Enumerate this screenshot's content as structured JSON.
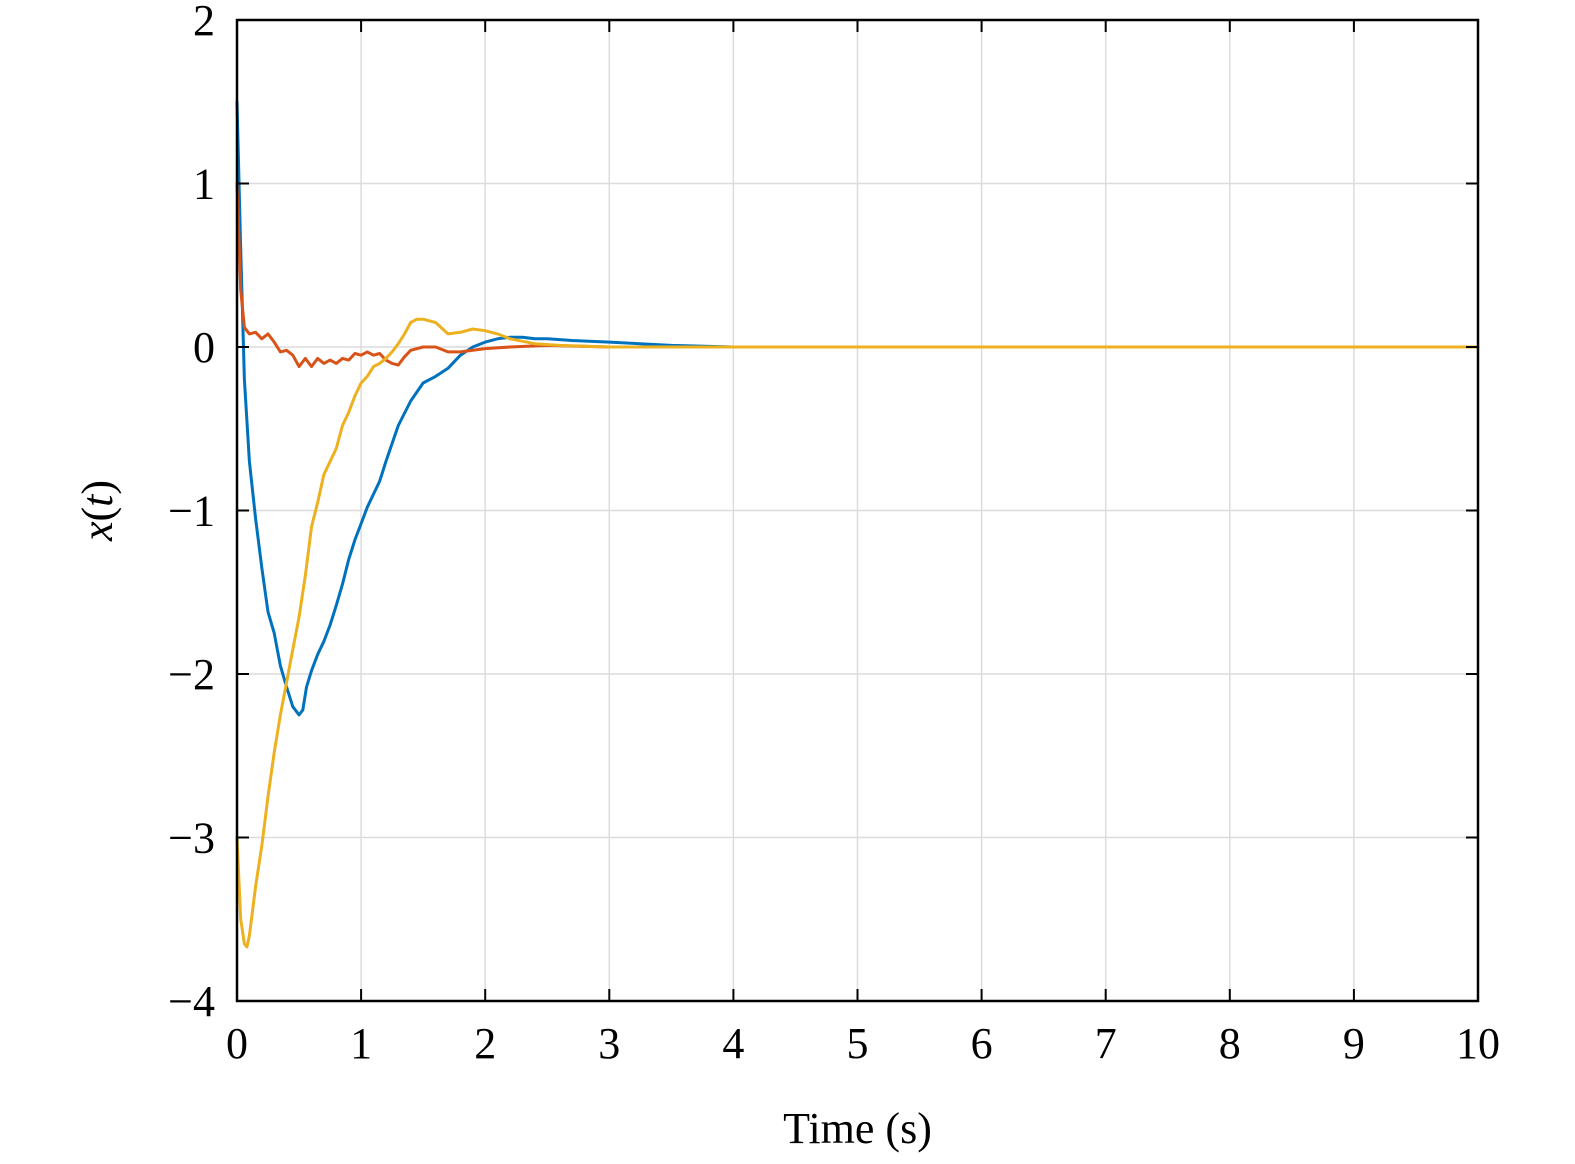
{
  "chart_data": {
    "type": "line",
    "title": "",
    "xlabel": "Time (s)",
    "ylabel_italic_var": "x",
    "ylabel_paren_open": "(",
    "ylabel_italic_arg": "t",
    "ylabel_paren_close": ")",
    "xlim": [
      0,
      10
    ],
    "ylim": [
      -4,
      2
    ],
    "xticks": [
      0,
      1,
      2,
      3,
      4,
      5,
      6,
      7,
      8,
      9,
      10
    ],
    "yticks": [
      -4,
      -3,
      -2,
      -1,
      0,
      1,
      2
    ],
    "xtick_labels": [
      "0",
      "1",
      "2",
      "3",
      "4",
      "5",
      "6",
      "7",
      "8",
      "9",
      "10"
    ],
    "ytick_labels": [
      "−4",
      "−3",
      "−2",
      "−1",
      "0",
      "1",
      "2"
    ],
    "grid": true,
    "legend": "none",
    "series": [
      {
        "color": "#0072BD",
        "x": [
          0,
          0.03,
          0.06,
          0.1,
          0.15,
          0.2,
          0.25,
          0.3,
          0.35,
          0.4,
          0.45,
          0.5,
          0.53,
          0.56,
          0.6,
          0.65,
          0.7,
          0.75,
          0.8,
          0.85,
          0.9,
          0.95,
          1.0,
          1.05,
          1.1,
          1.15,
          1.2,
          1.3,
          1.4,
          1.5,
          1.6,
          1.7,
          1.8,
          1.9,
          2.0,
          2.1,
          2.2,
          2.3,
          2.4,
          2.5,
          2.7,
          3.0,
          3.5,
          4.0,
          5.0,
          10.0
        ],
        "y": [
          1.5,
          0.6,
          -0.2,
          -0.7,
          -1.05,
          -1.35,
          -1.62,
          -1.75,
          -1.95,
          -2.08,
          -2.2,
          -2.25,
          -2.22,
          -2.08,
          -1.98,
          -1.88,
          -1.8,
          -1.7,
          -1.58,
          -1.45,
          -1.3,
          -1.18,
          -1.08,
          -0.98,
          -0.9,
          -0.82,
          -0.7,
          -0.48,
          -0.33,
          -0.22,
          -0.18,
          -0.13,
          -0.05,
          0.0,
          0.03,
          0.05,
          0.06,
          0.06,
          0.05,
          0.05,
          0.04,
          0.03,
          0.01,
          0.0,
          0.0,
          0.0
        ]
      },
      {
        "color": "#D95319",
        "x": [
          0,
          0.03,
          0.06,
          0.1,
          0.15,
          0.2,
          0.25,
          0.3,
          0.35,
          0.4,
          0.45,
          0.5,
          0.55,
          0.6,
          0.65,
          0.7,
          0.75,
          0.8,
          0.85,
          0.9,
          0.95,
          1.0,
          1.05,
          1.1,
          1.15,
          1.2,
          1.25,
          1.3,
          1.35,
          1.4,
          1.5,
          1.6,
          1.7,
          1.8,
          1.9,
          2.0,
          2.2,
          2.5,
          3.0,
          10.0
        ],
        "y": [
          1.0,
          0.35,
          0.12,
          0.08,
          0.09,
          0.05,
          0.08,
          0.03,
          -0.03,
          -0.02,
          -0.05,
          -0.12,
          -0.07,
          -0.12,
          -0.07,
          -0.1,
          -0.08,
          -0.1,
          -0.07,
          -0.08,
          -0.04,
          -0.05,
          -0.03,
          -0.05,
          -0.04,
          -0.08,
          -0.1,
          -0.11,
          -0.06,
          -0.02,
          0.0,
          0.0,
          -0.03,
          -0.03,
          -0.02,
          -0.01,
          0.0,
          0.01,
          0.0,
          0.0
        ]
      },
      {
        "color": "#EDB120",
        "x": [
          0,
          0.03,
          0.06,
          0.08,
          0.1,
          0.15,
          0.2,
          0.25,
          0.3,
          0.35,
          0.4,
          0.45,
          0.5,
          0.55,
          0.6,
          0.65,
          0.7,
          0.75,
          0.8,
          0.85,
          0.9,
          0.95,
          1.0,
          1.05,
          1.1,
          1.15,
          1.2,
          1.25,
          1.3,
          1.35,
          1.4,
          1.45,
          1.5,
          1.6,
          1.7,
          1.8,
          1.9,
          2.0,
          2.1,
          2.2,
          2.4,
          2.6,
          3.0,
          3.5,
          10.0
        ],
        "y": [
          -3.0,
          -3.5,
          -3.65,
          -3.67,
          -3.6,
          -3.3,
          -3.05,
          -2.75,
          -2.48,
          -2.25,
          -2.05,
          -1.85,
          -1.65,
          -1.4,
          -1.1,
          -0.95,
          -0.78,
          -0.7,
          -0.62,
          -0.48,
          -0.4,
          -0.3,
          -0.22,
          -0.18,
          -0.12,
          -0.1,
          -0.07,
          -0.03,
          0.02,
          0.08,
          0.15,
          0.17,
          0.17,
          0.15,
          0.08,
          0.09,
          0.11,
          0.1,
          0.08,
          0.05,
          0.02,
          0.01,
          0.0,
          0.0,
          0.0
        ]
      }
    ]
  }
}
